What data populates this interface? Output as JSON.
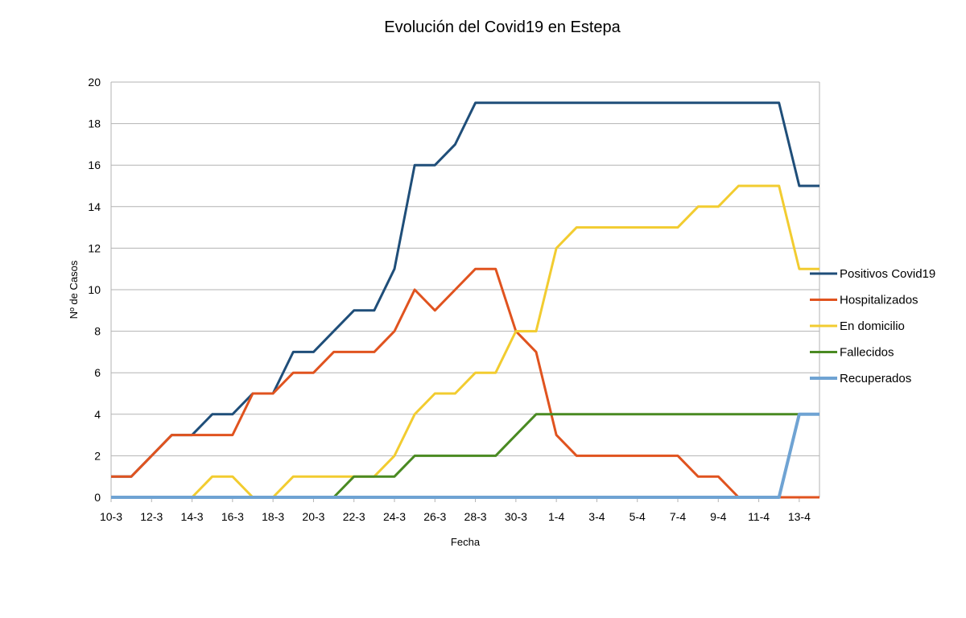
{
  "chart_data": {
    "type": "line",
    "title": "Evolución del Covid19 en Estepa",
    "xlabel": "Fecha",
    "ylabel": "Nº de Casos",
    "ylim": [
      0,
      20
    ],
    "yticks": [
      0,
      2,
      4,
      6,
      8,
      10,
      12,
      14,
      16,
      18,
      20
    ],
    "grid": true,
    "legend_position": "right",
    "x": [
      "10-3",
      "11-3",
      "12-3",
      "13-3",
      "14-3",
      "15-3",
      "16-3",
      "17-3",
      "18-3",
      "19-3",
      "20-3",
      "21-3",
      "22-3",
      "23-3",
      "24-3",
      "25-3",
      "26-3",
      "27-3",
      "28-3",
      "29-3",
      "30-3",
      "31-3",
      "1-4",
      "2-4",
      "3-4",
      "4-4",
      "5-4",
      "6-4",
      "7-4",
      "8-4",
      "9-4",
      "10-4",
      "11-4",
      "12-4",
      "13-4",
      "14-4"
    ],
    "x_tick_labels": [
      "10-3",
      "12-3",
      "14-3",
      "16-3",
      "18-3",
      "20-3",
      "22-3",
      "24-3",
      "26-3",
      "28-3",
      "30-3",
      "1-4",
      "3-4",
      "5-4",
      "7-4",
      "9-4",
      "11-4",
      "13-4"
    ],
    "series": [
      {
        "name": "Positivos Covid19",
        "color": "#1f4e79",
        "values": [
          1,
          1,
          2,
          3,
          3,
          4,
          4,
          5,
          5,
          7,
          7,
          8,
          9,
          9,
          11,
          16,
          16,
          17,
          19,
          19,
          19,
          19,
          19,
          19,
          19,
          19,
          19,
          19,
          19,
          19,
          19,
          19,
          19,
          19,
          15,
          15
        ]
      },
      {
        "name": "Hospitalizados",
        "color": "#e0531f",
        "values": [
          1,
          1,
          2,
          3,
          3,
          3,
          3,
          5,
          5,
          6,
          6,
          7,
          7,
          7,
          8,
          10,
          9,
          10,
          11,
          11,
          8,
          7,
          3,
          2,
          2,
          2,
          2,
          2,
          2,
          1,
          1,
          0,
          0,
          0,
          0,
          0
        ]
      },
      {
        "name": "En domicilio",
        "color": "#f2cc30",
        "values": [
          0,
          0,
          0,
          0,
          0,
          1,
          1,
          0,
          0,
          1,
          1,
          1,
          1,
          1,
          2,
          4,
          5,
          5,
          6,
          6,
          8,
          8,
          12,
          13,
          13,
          13,
          13,
          13,
          13,
          14,
          14,
          15,
          15,
          15,
          11,
          11
        ]
      },
      {
        "name": "Fallecidos",
        "color": "#4a8a22",
        "values": [
          0,
          0,
          0,
          0,
          0,
          0,
          0,
          0,
          0,
          0,
          0,
          0,
          1,
          1,
          1,
          2,
          2,
          2,
          2,
          2,
          3,
          4,
          4,
          4,
          4,
          4,
          4,
          4,
          4,
          4,
          4,
          4,
          4,
          4,
          4,
          4
        ]
      },
      {
        "name": "Recuperados",
        "color": "#6fa3d3",
        "values": [
          0,
          0,
          0,
          0,
          0,
          0,
          0,
          0,
          0,
          0,
          0,
          0,
          0,
          0,
          0,
          0,
          0,
          0,
          0,
          0,
          0,
          0,
          0,
          0,
          0,
          0,
          0,
          0,
          0,
          0,
          0,
          0,
          0,
          0,
          4,
          4
        ]
      }
    ]
  }
}
